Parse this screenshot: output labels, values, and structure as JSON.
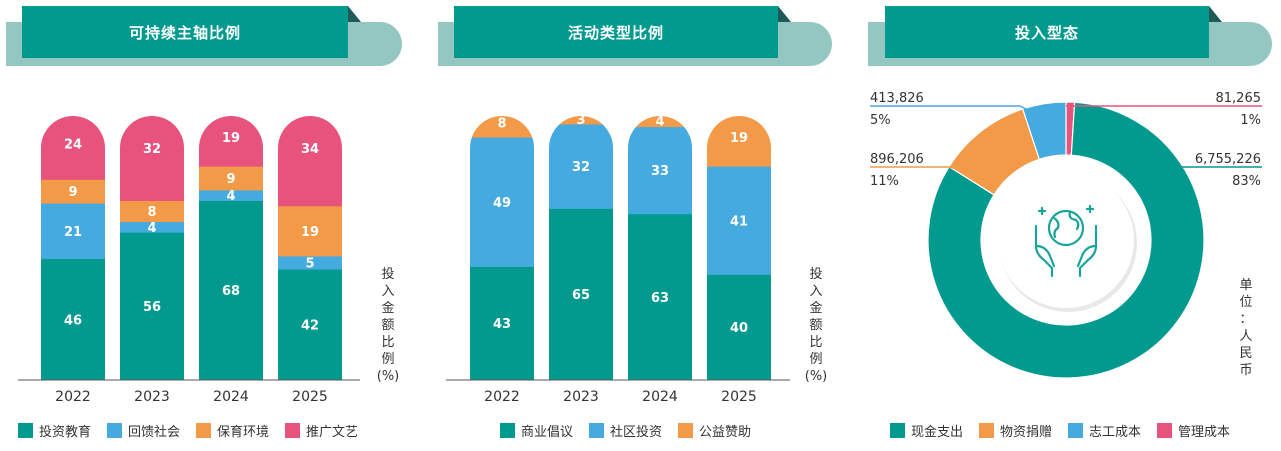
{
  "colors": {
    "teal": "#029a8f",
    "blue": "#45aadf",
    "orange": "#f39a49",
    "pink": "#e8537e",
    "header_light": "#94c7c2"
  },
  "panel1": {
    "title": "可持续主轴比例",
    "ylabel_chars": [
      "投",
      "入",
      "金",
      "额",
      "比",
      "例",
      "(%)"
    ],
    "legend": [
      "投资教育",
      "回馈社会",
      "保育环境",
      "推广文艺"
    ]
  },
  "panel2": {
    "title": "活动类型比例",
    "ylabel_chars": [
      "投",
      "入",
      "金",
      "额",
      "比",
      "例",
      "(%)"
    ],
    "legend": [
      "商业倡议",
      "社区投资",
      "公益赞助"
    ]
  },
  "panel3": {
    "title": "投入型态",
    "unit_chars": [
      "单",
      "位",
      "：",
      "人",
      "民",
      "币"
    ],
    "legend": [
      "现金支出",
      "物资捐赠",
      "志工成本",
      "管理成本"
    ]
  },
  "chart_data": [
    {
      "type": "bar",
      "stacked": true,
      "title": "可持续主轴比例",
      "ylabel": "投入金额比例 (%)",
      "categories": [
        "2022",
        "2023",
        "2024",
        "2025"
      ],
      "series": [
        {
          "name": "投资教育",
          "color": "#029a8f",
          "values": [
            46,
            56,
            68,
            42
          ]
        },
        {
          "name": "回馈社会",
          "color": "#45aadf",
          "values": [
            21,
            4,
            4,
            5
          ]
        },
        {
          "name": "保育环境",
          "color": "#f39a49",
          "values": [
            9,
            8,
            9,
            19
          ]
        },
        {
          "name": "推广文艺",
          "color": "#e8537e",
          "values": [
            24,
            32,
            19,
            34
          ]
        }
      ],
      "ylim": [
        0,
        100
      ],
      "legend_position": "bottom"
    },
    {
      "type": "bar",
      "stacked": true,
      "title": "活动类型比例",
      "ylabel": "投入金额比例 (%)",
      "categories": [
        "2022",
        "2023",
        "2024",
        "2025"
      ],
      "series": [
        {
          "name": "商业倡议",
          "color": "#029a8f",
          "values": [
            43,
            65,
            63,
            40
          ]
        },
        {
          "name": "社区投资",
          "color": "#45aadf",
          "values": [
            49,
            32,
            33,
            41
          ]
        },
        {
          "name": "公益赞助",
          "color": "#f39a49",
          "values": [
            8,
            3,
            4,
            19
          ]
        }
      ],
      "ylim": [
        0,
        100
      ],
      "legend_position": "bottom"
    },
    {
      "type": "pie",
      "donut": true,
      "title": "投入型态",
      "unit": "单位：人民币",
      "slices": [
        {
          "name": "现金支出",
          "color": "#029a8f",
          "value": 6755226,
          "value_label": "6,755,226",
          "pct_label": "83%"
        },
        {
          "name": "物资捐赠",
          "color": "#f39a49",
          "value": 896206,
          "value_label": "896,206",
          "pct_label": "11%"
        },
        {
          "name": "志工成本",
          "color": "#45aadf",
          "value": 413826,
          "value_label": "413,826",
          "pct_label": "5%"
        },
        {
          "name": "管理成本",
          "color": "#e8537e",
          "value": 81265,
          "value_label": "81,265",
          "pct_label": "1%"
        }
      ],
      "legend_position": "bottom"
    }
  ]
}
